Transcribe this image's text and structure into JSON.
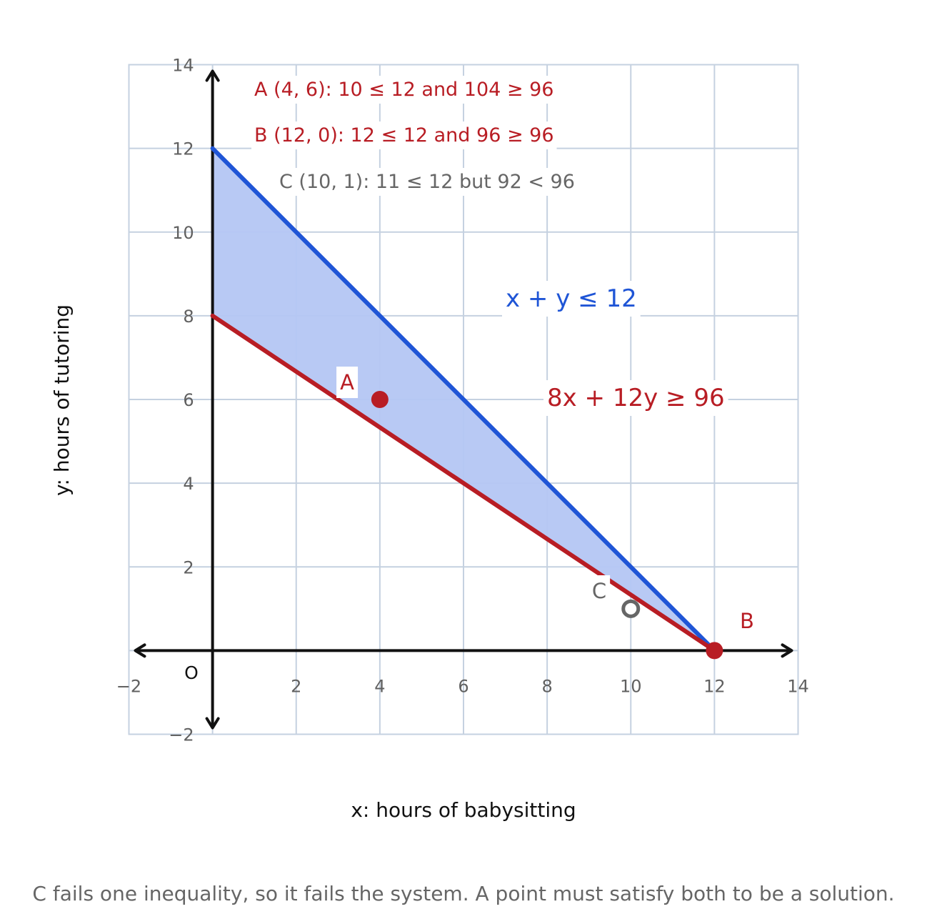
{
  "chart_data": {
    "type": "line",
    "xlabel": "x: hours of babysitting",
    "ylabel": "y: hours of tutoring",
    "xlim": [
      -2,
      14
    ],
    "ylim": [
      -2,
      14
    ],
    "x_ticks": [
      -2,
      2,
      4,
      6,
      8,
      10,
      12,
      14
    ],
    "y_ticks": [
      -2,
      2,
      4,
      6,
      8,
      10,
      12,
      14
    ],
    "x_tick_labels": [
      "−2",
      "2",
      "4",
      "6",
      "8",
      "10",
      "12",
      "14"
    ],
    "y_tick_labels": [
      "−2",
      "2",
      "4",
      "6",
      "8",
      "10",
      "12",
      "14"
    ],
    "origin_label": "O",
    "grid": true,
    "series": [
      {
        "name": "x + y ≤ 12",
        "color": "#1f55d6",
        "points": [
          [
            0,
            12
          ],
          [
            12,
            0
          ]
        ]
      },
      {
        "name": "8x + 12y ≥ 96",
        "color": "#b81d24",
        "points": [
          [
            0,
            8
          ],
          [
            12,
            0
          ]
        ]
      }
    ],
    "feasible_region": {
      "color": "#b4c6f3",
      "vertices": [
        [
          0,
          12
        ],
        [
          12,
          0
        ],
        [
          0,
          8
        ]
      ]
    },
    "points": [
      {
        "label": "A",
        "x": 4,
        "y": 6,
        "style": "filled",
        "color": "#b81d24"
      },
      {
        "label": "B",
        "x": 12,
        "y": 0,
        "style": "filled",
        "color": "#b81d24"
      },
      {
        "label": "C",
        "x": 10,
        "y": 1,
        "style": "hollow",
        "color": "#666666"
      }
    ],
    "annotations": [
      {
        "text": "A (4, 6):  10 ≤ 12  and  104 ≥ 96",
        "color": "#b81d24"
      },
      {
        "text": "B (12, 0):  12 ≤ 12  and  96 ≥ 96",
        "color": "#b81d24"
      },
      {
        "text": "C (10, 1):  11 ≤ 12  but  92 < 96",
        "color": "#666666"
      }
    ],
    "caption": "C fails one inequality, so it fails the system. A point must satisfy both to be a solution."
  },
  "colors": {
    "grid": "#c5d1e0",
    "axis": "#111111",
    "blue": "#1f55d6",
    "red": "#b81d24",
    "gray": "#666666",
    "region": "#b4c6f3"
  }
}
